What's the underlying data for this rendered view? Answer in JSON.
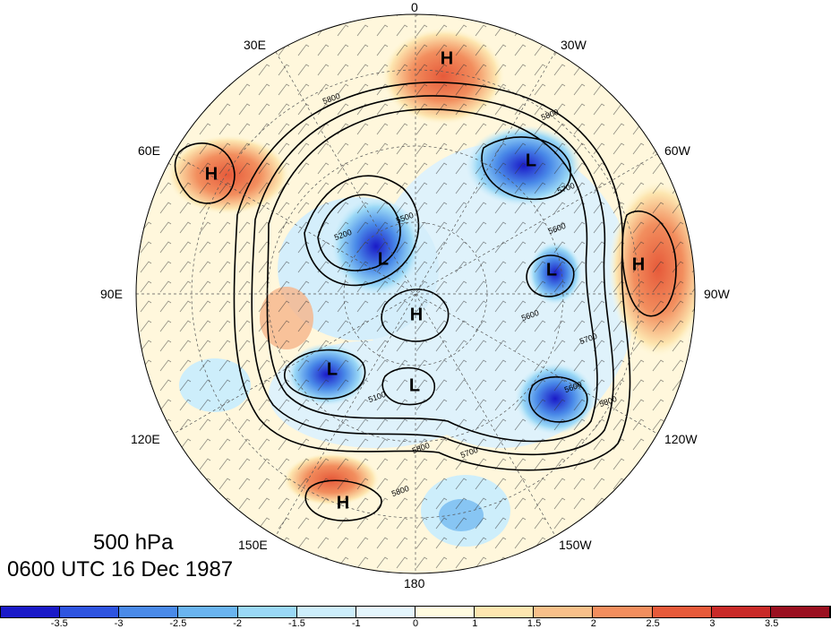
{
  "map": {
    "level": "500 hPa",
    "time": "0600 UTC 16 Dec 1987",
    "longitude_labels": [
      "0",
      "30W",
      "60W",
      "90W",
      "120W",
      "150W",
      "180",
      "150E",
      "120E",
      "90E",
      "60E",
      "30E"
    ],
    "systems": [
      {
        "label": "H",
        "type": "high"
      },
      {
        "label": "H",
        "type": "high"
      },
      {
        "label": "H",
        "type": "high"
      },
      {
        "label": "H",
        "type": "high"
      },
      {
        "label": "H",
        "type": "high"
      },
      {
        "label": "L",
        "type": "low"
      },
      {
        "label": "L",
        "type": "low"
      },
      {
        "label": "L",
        "type": "low"
      },
      {
        "label": "L",
        "type": "low"
      },
      {
        "label": "L",
        "type": "low"
      }
    ],
    "contour_labels": [
      "5800",
      "5700",
      "5600",
      "5500",
      "5200",
      "5100",
      "5800",
      "5700",
      "5800",
      "5600",
      "5800",
      "5700",
      "5600",
      "5800"
    ],
    "colorbar": {
      "ticks": [
        "-3.5",
        "-3",
        "-2.5",
        "-2",
        "-1.5",
        "-1",
        "0",
        "1",
        "1.5",
        "2",
        "2.5",
        "3",
        "3.5"
      ],
      "colors": [
        "#1a1ac8",
        "#2e54e0",
        "#4a8ae8",
        "#6ab4f0",
        "#9ad8f6",
        "#cdeefb",
        "#e4f5fc",
        "#fffbe0",
        "#fde6b0",
        "#f8c08a",
        "#f28e5e",
        "#e65a3a",
        "#c92a28",
        "#9a1020"
      ]
    }
  }
}
